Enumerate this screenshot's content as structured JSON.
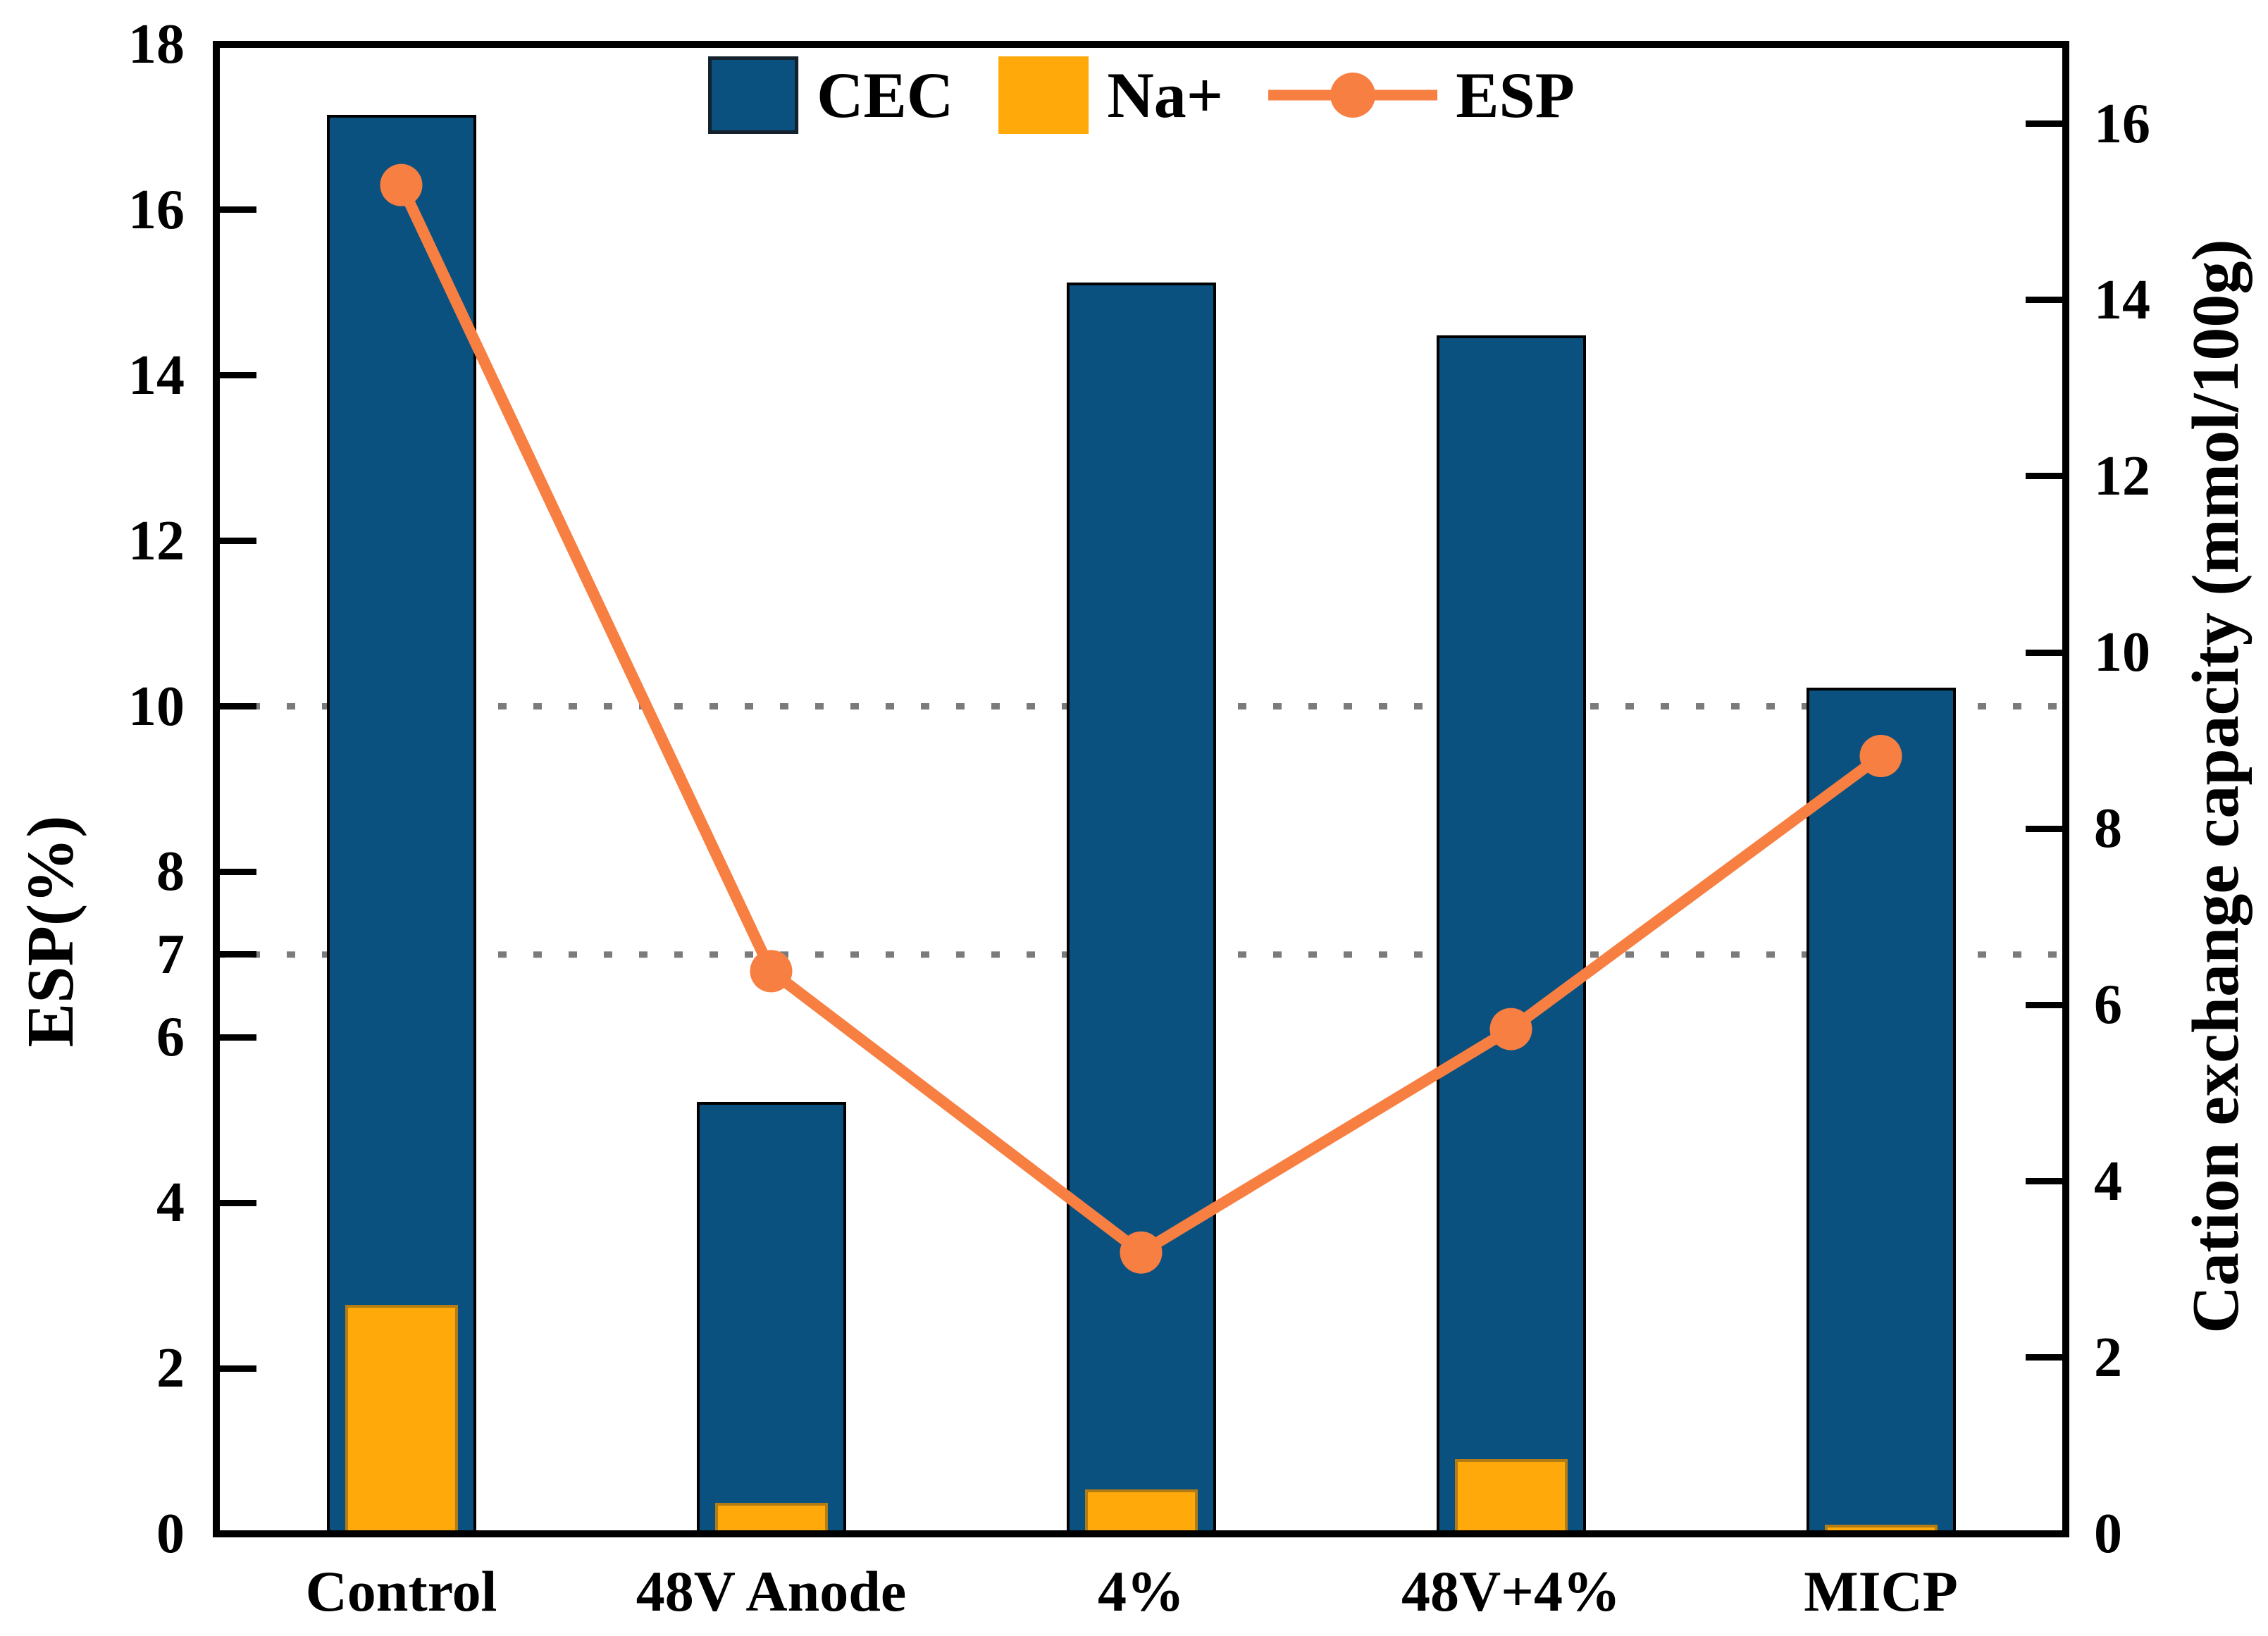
{
  "chart_data": {
    "type": "bar",
    "subtype": "dual-axis combo: overlay bars + line",
    "categories": [
      "Control",
      "48V Anode",
      "4%",
      "48V+4%",
      "MICP"
    ],
    "series": [
      {
        "name": "CEC",
        "type": "bar",
        "axis": "right",
        "color": "#0A5180",
        "values": [
          16.1,
          4.9,
          14.2,
          13.6,
          9.6
        ]
      },
      {
        "name": "Na+",
        "type": "bar",
        "axis": "right",
        "color": "#FFAA0A",
        "values": [
          2.6,
          0.35,
          0.5,
          0.85,
          0.1
        ]
      },
      {
        "name": "ESP",
        "type": "line",
        "axis": "left",
        "color": "#F87F42",
        "values": [
          16.3,
          6.8,
          3.4,
          6.1,
          9.4
        ]
      }
    ],
    "left_axis": {
      "label": "ESP(%)",
      "min": 0,
      "max": 18,
      "ticks": [
        0,
        2,
        4,
        6,
        7,
        8,
        10,
        12,
        14,
        16,
        18
      ]
    },
    "right_axis": {
      "label": "Cation exchange capacity (mmol/100g)",
      "min": 0,
      "max": 16.9,
      "ticks": [
        0,
        2,
        4,
        6,
        8,
        10,
        12,
        14,
        16
      ]
    },
    "reference_lines": {
      "axis": "left",
      "values": [
        7,
        10
      ],
      "style": "dotted",
      "color": "#7B7B7B"
    },
    "legend": {
      "position": "top-center",
      "entries": [
        "CEC",
        "Na+",
        "ESP"
      ]
    },
    "grid": "off (dotted reference lines only)",
    "background": "#FFFFFF"
  }
}
